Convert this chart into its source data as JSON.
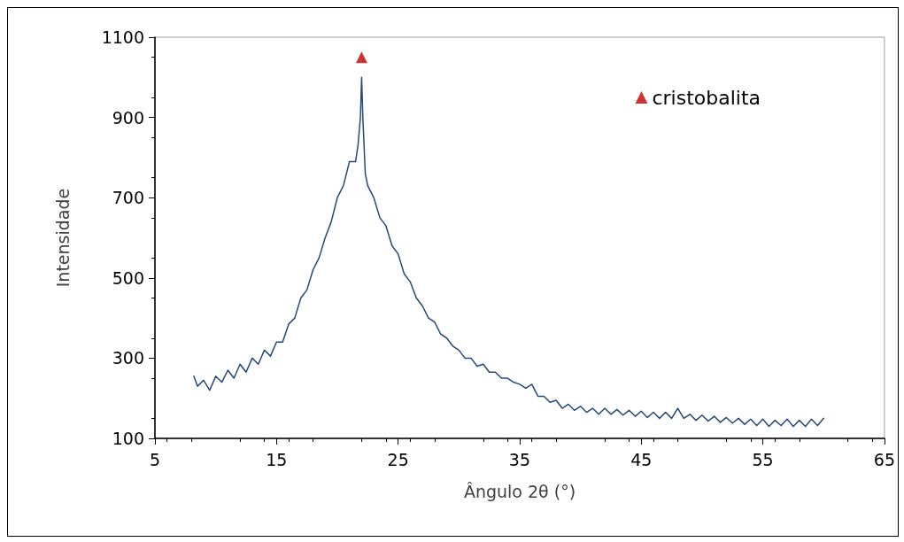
{
  "chart_data": {
    "type": "line",
    "xlabel": "Ângulo 2θ (°)",
    "ylabel": "Intensidade",
    "xlim": [
      5,
      65
    ],
    "xticks": [
      5,
      15,
      25,
      35,
      45,
      55,
      65
    ],
    "ylim": [
      100,
      1100
    ],
    "yticks": [
      100,
      300,
      500,
      700,
      900,
      1100
    ],
    "grid": false,
    "legend": "top right",
    "line_style": "solid",
    "series": [
      {
        "color": "#24497a",
        "marker": "none",
        "x": [
          8.2,
          8.5,
          9,
          9.5,
          10,
          10.5,
          11,
          11.5,
          12,
          12.5,
          13,
          13.5,
          14,
          14.5,
          15,
          15.5,
          16,
          16.5,
          17,
          17.5,
          18,
          18.5,
          19,
          19.5,
          20,
          20.5,
          21,
          21.5,
          21.7,
          21.9,
          22.0,
          22.1,
          22.3,
          22.5,
          23,
          23.5,
          24,
          24.5,
          25,
          25.5,
          26,
          26.5,
          27,
          27.5,
          28,
          28.5,
          29,
          29.5,
          30,
          30.5,
          31,
          31.5,
          32,
          32.5,
          33,
          33.5,
          34,
          34.5,
          35,
          35.5,
          36,
          36.5,
          37,
          37.5,
          38,
          38.5,
          39,
          39.5,
          40,
          40.5,
          41,
          41.5,
          42,
          42.5,
          43,
          43.5,
          44,
          44.5,
          45,
          45.5,
          46,
          46.5,
          47,
          47.5,
          48,
          48.5,
          49,
          49.5,
          50,
          50.5,
          51,
          51.5,
          52,
          52.5,
          53,
          53.5,
          54,
          54.5,
          55,
          55.5,
          56,
          56.5,
          57,
          57.5,
          58,
          58.5,
          59,
          59.5,
          60
        ],
        "values": [
          255,
          230,
          245,
          220,
          255,
          240,
          270,
          250,
          285,
          265,
          300,
          285,
          320,
          305,
          340,
          340,
          385,
          400,
          450,
          470,
          520,
          550,
          600,
          640,
          700,
          730,
          790,
          790,
          830,
          900,
          1000,
          900,
          760,
          730,
          700,
          650,
          630,
          580,
          560,
          510,
          490,
          450,
          430,
          400,
          390,
          360,
          350,
          330,
          320,
          300,
          300,
          280,
          285,
          265,
          265,
          250,
          250,
          240,
          235,
          225,
          235,
          205,
          205,
          190,
          195,
          175,
          185,
          170,
          180,
          165,
          175,
          160,
          175,
          160,
          172,
          158,
          170,
          155,
          168,
          152,
          165,
          150,
          165,
          150,
          175,
          150,
          160,
          145,
          158,
          143,
          155,
          140,
          152,
          138,
          150,
          135,
          148,
          132,
          148,
          130,
          145,
          132,
          148,
          130,
          145,
          130,
          148,
          132,
          150
        ]
      },
      {
        "type": "scatter",
        "name": "cristobalita",
        "color": "#c00000",
        "marker": "triangle",
        "x": [
          22
        ],
        "values": [
          1050
        ]
      }
    ]
  }
}
